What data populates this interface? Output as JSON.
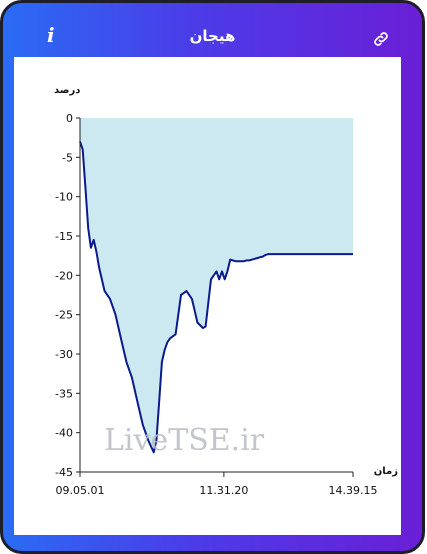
{
  "header": {
    "title": "هیجان",
    "info_icon": "info-icon",
    "link_icon": "link-icon"
  },
  "watermark": "LiveTSE.ir",
  "colors": {
    "gradient_start": "#2a6cf4",
    "gradient_end": "#6a1fd6",
    "area_fill": "#cce8f0",
    "line": "#0a1a8c"
  },
  "chart_data": {
    "type": "area",
    "ylabel": "درصد",
    "xlabel": "زمان",
    "ylim": [
      -45,
      0
    ],
    "yticks": [
      "0",
      "-5",
      "-10",
      "-15",
      "-20",
      "-25",
      "-30",
      "-35",
      "-40",
      "-45"
    ],
    "xticks": [
      "09.05.01",
      "11.31.20",
      "14.39.15"
    ],
    "series": [
      {
        "x": [
          0,
          0.01,
          0.02,
          0.03,
          0.04,
          0.05,
          0.06,
          0.07,
          0.09,
          0.11,
          0.13,
          0.15,
          0.17,
          0.19,
          0.21,
          0.23,
          0.25,
          0.27,
          0.28,
          0.29,
          0.3,
          0.31,
          0.32,
          0.33,
          0.35,
          0.37,
          0.39,
          0.41,
          0.42,
          0.43,
          0.45,
          0.46,
          0.48,
          0.5,
          0.51,
          0.52,
          0.53,
          0.54,
          0.55,
          0.56,
          0.57,
          0.58,
          0.59,
          0.6,
          0.61,
          0.62,
          0.63,
          0.64,
          0.65,
          0.66,
          0.67,
          0.68,
          0.69,
          0.7,
          0.72,
          0.74,
          0.76,
          0.78,
          0.8,
          0.82,
          0.84,
          0.86,
          0.88,
          0.9,
          0.92,
          0.94,
          0.96,
          0.98,
          1.0
        ],
        "y": [
          -3,
          -4,
          -9,
          -14,
          -16.5,
          -15.5,
          -17,
          -19,
          -22,
          -23,
          -25,
          -28,
          -31,
          -33,
          -36,
          -39,
          -41,
          -42.5,
          -41,
          -36,
          -31,
          -29.5,
          -28.5,
          -28,
          -27.5,
          -22.5,
          -22,
          -23,
          -24.5,
          -26,
          -26.7,
          -26.5,
          -20.5,
          -19.5,
          -20.5,
          -19.5,
          -20.5,
          -19.5,
          -18,
          -18.1,
          -18.2,
          -18.2,
          -18.2,
          -18.2,
          -18.1,
          -18.1,
          -18.0,
          -17.9,
          -17.8,
          -17.7,
          -17.6,
          -17.4,
          -17.3,
          -17.3,
          -17.3,
          -17.3,
          -17.3,
          -17.3,
          -17.3,
          -17.3,
          -17.3,
          -17.3,
          -17.3,
          -17.3,
          -17.3,
          -17.3,
          -17.3,
          -17.3,
          -17.3
        ]
      }
    ],
    "grid": false
  }
}
